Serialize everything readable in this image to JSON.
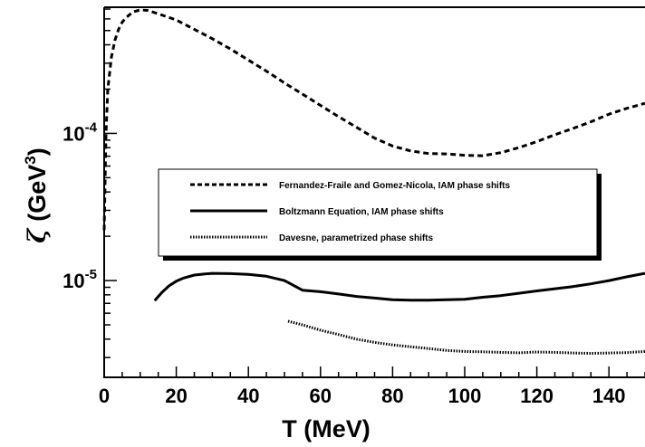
{
  "chart_data": {
    "type": "line",
    "title": "",
    "xlabel": "T (MeV)",
    "ylabel_symbol": "ζ",
    "ylabel_unit": "(GeV",
    "ylabel_unit_exp": "3",
    "ylabel_unit_close": ")",
    "xlim": [
      0,
      150
    ],
    "ylim": [
      2.2e-06,
      0.00072
    ],
    "yscale": "log",
    "grid": false,
    "legend_position": "center",
    "x_ticks": [
      {
        "value": 0,
        "label": "0"
      },
      {
        "value": 20,
        "label": "20"
      },
      {
        "value": 40,
        "label": "40"
      },
      {
        "value": 60,
        "label": "60"
      },
      {
        "value": 80,
        "label": "80"
      },
      {
        "value": 100,
        "label": "100"
      },
      {
        "value": 120,
        "label": "120"
      },
      {
        "value": 140,
        "label": "140"
      }
    ],
    "y_ticks": [
      {
        "value": 1e-05,
        "base": "10",
        "exp": "-5"
      },
      {
        "value": 0.0001,
        "base": "10",
        "exp": "-4"
      }
    ],
    "series": [
      {
        "name": "Fernandez-Fraile and Gomez-Nicola, IAM phase shifts",
        "style": "dashed",
        "color": "#000000",
        "x": [
          0,
          0.5,
          1,
          2,
          3,
          4,
          5,
          6,
          8,
          10,
          12,
          15,
          20,
          25,
          30,
          35,
          40,
          45,
          50,
          55,
          60,
          65,
          70,
          75,
          80,
          85,
          90,
          95,
          100,
          105,
          110,
          115,
          120,
          125,
          130,
          135,
          140,
          145,
          150
        ],
        "y": [
          2.2e-05,
          0.0001,
          0.0002,
          0.00033,
          0.00043,
          0.00051,
          0.00057,
          0.00061,
          0.00067,
          0.00069,
          0.000685,
          0.00065,
          0.00059,
          0.00051,
          0.00044,
          0.000375,
          0.000315,
          0.000265,
          0.00022,
          0.000185,
          0.000155,
          0.00013,
          0.00011,
          9.3e-05,
          8.2e-05,
          7.6e-05,
          7.3e-05,
          7.25e-05,
          7.1e-05,
          7.05e-05,
          7.4e-05,
          8e-05,
          8.8e-05,
          9.8e-05,
          0.000108,
          0.00012,
          0.000135,
          0.000148,
          0.00016
        ]
      },
      {
        "name": "Boltzmann Equation, IAM phase shifts",
        "style": "solid",
        "color": "#000000",
        "x": [
          14,
          16,
          18,
          20,
          22,
          25,
          28,
          30,
          35,
          40,
          45,
          50,
          55,
          60,
          65,
          70,
          75,
          80,
          85,
          90,
          95,
          100,
          105,
          110,
          115,
          120,
          125,
          130,
          135,
          140,
          145,
          150
        ],
        "y": [
          7.3e-06,
          8.3e-06,
          9.2e-06,
          9.9e-06,
          1.04e-05,
          1.09e-05,
          1.11e-05,
          1.12e-05,
          1.115e-05,
          1.1e-05,
          1.07e-05,
          1e-05,
          8.6e-06,
          8.4e-06,
          8.1e-06,
          7.8e-06,
          7.6e-06,
          7.4e-06,
          7.35e-06,
          7.35e-06,
          7.4e-06,
          7.45e-06,
          7.7e-06,
          7.9e-06,
          8.2e-06,
          8.5e-06,
          8.8e-06,
          9.1e-06,
          9.5e-06,
          1e-05,
          1.06e-05,
          1.12e-05
        ]
      },
      {
        "name": "Davesne, parametrized phase shifts",
        "style": "dotted",
        "color": "#000000",
        "x": [
          51,
          55,
          60,
          65,
          70,
          75,
          80,
          85,
          90,
          95,
          100,
          105,
          110,
          115,
          120,
          125,
          130,
          135,
          140,
          145,
          150
        ],
        "y": [
          5.3e-06,
          5e-06,
          4.6e-06,
          4.3e-06,
          4e-06,
          3.8e-06,
          3.65e-06,
          3.55e-06,
          3.45e-06,
          3.35e-06,
          3.3e-06,
          3.28e-06,
          3.25e-06,
          3.23e-06,
          3.27e-06,
          3.25e-06,
          3.22e-06,
          3.2e-06,
          3.22e-06,
          3.24e-06,
          3.3e-06
        ]
      }
    ]
  }
}
